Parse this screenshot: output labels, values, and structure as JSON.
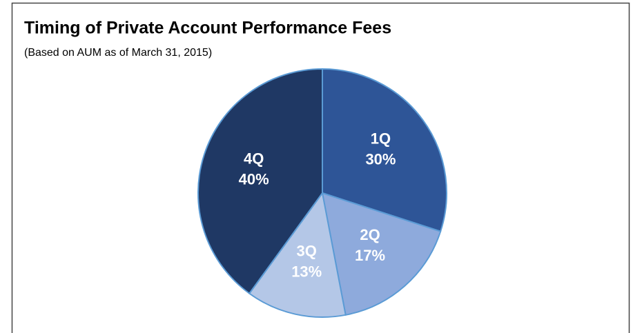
{
  "chart_data": {
    "type": "pie",
    "title": "Timing of Private Account Performance Fees",
    "subtitle": "(Based on AUM as of March 31, 2015)",
    "categories": [
      "1Q",
      "2Q",
      "3Q",
      "4Q"
    ],
    "values": [
      30,
      17,
      13,
      40
    ],
    "value_labels": [
      "30%",
      "17%",
      "13%",
      "40%"
    ],
    "colors": [
      "#2e5597",
      "#8eaadc",
      "#b4c7e7",
      "#1f3864"
    ]
  }
}
